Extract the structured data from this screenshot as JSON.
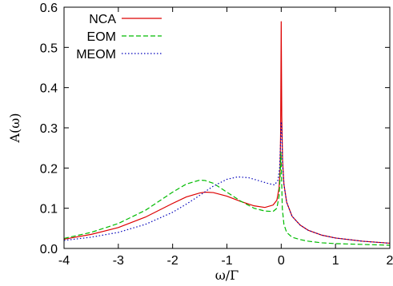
{
  "chart_data": {
    "type": "line",
    "xlabel": "ω/Γ",
    "ylabel": "A(ω)",
    "xlim": [
      -4,
      2
    ],
    "ylim": [
      0,
      0.6
    ],
    "xticks": [
      "-4",
      "-3",
      "-2",
      "-1",
      "0",
      "1",
      "2"
    ],
    "yticks": [
      "0.0",
      "0.1",
      "0.2",
      "0.3",
      "0.4",
      "0.5",
      "0.6"
    ],
    "grid": false,
    "legend_position": "top-left",
    "series": [
      {
        "name": "NCA",
        "color": "#dd0000",
        "style": "solid",
        "points": [
          [
            -4,
            0.023
          ],
          [
            -3.5,
            0.035
          ],
          [
            -3,
            0.052
          ],
          [
            -2.5,
            0.078
          ],
          [
            -2,
            0.112
          ],
          [
            -1.75,
            0.128
          ],
          [
            -1.5,
            0.138
          ],
          [
            -1.4,
            0.14
          ],
          [
            -1.25,
            0.139
          ],
          [
            -1,
            0.13
          ],
          [
            -0.75,
            0.117
          ],
          [
            -0.5,
            0.106
          ],
          [
            -0.3,
            0.102
          ],
          [
            -0.15,
            0.108
          ],
          [
            -0.08,
            0.12
          ],
          [
            -0.04,
            0.15
          ],
          [
            -0.02,
            0.2
          ],
          [
            -0.01,
            0.3
          ],
          [
            0,
            0.565
          ],
          [
            0.01,
            0.33
          ],
          [
            0.025,
            0.22
          ],
          [
            0.05,
            0.16
          ],
          [
            0.1,
            0.115
          ],
          [
            0.2,
            0.08
          ],
          [
            0.35,
            0.058
          ],
          [
            0.5,
            0.045
          ],
          [
            0.75,
            0.033
          ],
          [
            1,
            0.026
          ],
          [
            1.5,
            0.018
          ],
          [
            2,
            0.013
          ]
        ]
      },
      {
        "name": "EOM",
        "color": "#00bb00",
        "style": "dashed",
        "points": [
          [
            -4,
            0.025
          ],
          [
            -3.5,
            0.04
          ],
          [
            -3,
            0.062
          ],
          [
            -2.5,
            0.095
          ],
          [
            -2,
            0.14
          ],
          [
            -1.75,
            0.16
          ],
          [
            -1.5,
            0.17
          ],
          [
            -1.4,
            0.169
          ],
          [
            -1.25,
            0.162
          ],
          [
            -1,
            0.14
          ],
          [
            -0.75,
            0.118
          ],
          [
            -0.5,
            0.1
          ],
          [
            -0.3,
            0.093
          ],
          [
            -0.15,
            0.092
          ],
          [
            -0.08,
            0.1
          ],
          [
            -0.04,
            0.13
          ],
          [
            -0.02,
            0.18
          ],
          [
            -0.005,
            0.24
          ],
          [
            0,
            0.215
          ],
          [
            0.02,
            0.1
          ],
          [
            0.05,
            0.06
          ],
          [
            0.1,
            0.04
          ],
          [
            0.2,
            0.028
          ],
          [
            0.35,
            0.022
          ],
          [
            0.5,
            0.018
          ],
          [
            0.75,
            0.014
          ],
          [
            1,
            0.012
          ],
          [
            1.5,
            0.01
          ],
          [
            2,
            0.008
          ]
        ]
      },
      {
        "name": "MEOM",
        "color": "#0000bb",
        "style": "dotted",
        "points": [
          [
            -4,
            0.02
          ],
          [
            -3.5,
            0.028
          ],
          [
            -3,
            0.04
          ],
          [
            -2.5,
            0.06
          ],
          [
            -2,
            0.09
          ],
          [
            -1.75,
            0.11
          ],
          [
            -1.5,
            0.132
          ],
          [
            -1.25,
            0.155
          ],
          [
            -1,
            0.172
          ],
          [
            -0.8,
            0.178
          ],
          [
            -0.6,
            0.176
          ],
          [
            -0.4,
            0.168
          ],
          [
            -0.25,
            0.162
          ],
          [
            -0.12,
            0.158
          ],
          [
            -0.06,
            0.17
          ],
          [
            -0.03,
            0.2
          ],
          [
            -0.01,
            0.27
          ],
          [
            0,
            0.315
          ],
          [
            0.01,
            0.29
          ],
          [
            0.025,
            0.21
          ],
          [
            0.05,
            0.16
          ],
          [
            0.1,
            0.115
          ],
          [
            0.2,
            0.08
          ],
          [
            0.35,
            0.058
          ],
          [
            0.5,
            0.045
          ],
          [
            0.75,
            0.033
          ],
          [
            1,
            0.026
          ],
          [
            1.5,
            0.018
          ],
          [
            2,
            0.013
          ]
        ]
      }
    ]
  }
}
